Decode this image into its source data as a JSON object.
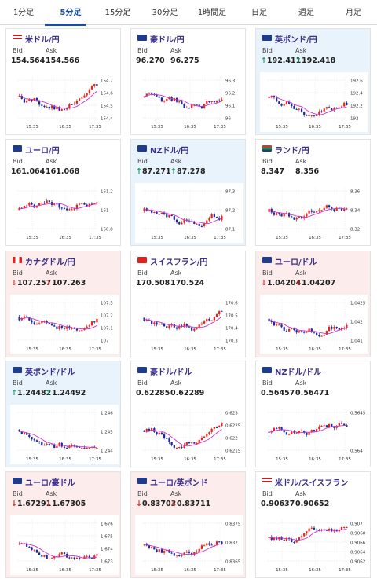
{
  "tabs": [
    "1分足",
    "5分足",
    "15分足",
    "30分足",
    "1時間足",
    "日足",
    "週足",
    "月足"
  ],
  "active_tab": 1,
  "bid_label": "Bid",
  "ask_label": "Ask",
  "arrow_up": "↑",
  "arrow_down": "↓",
  "x_ticks": [
    "15:35",
    "16:35",
    "17:35"
  ],
  "colors": {
    "accent": "#1a4fa0",
    "up_candle": "#e8231c",
    "down_candle": "#1a2a99",
    "ma_line": "#cc33cc",
    "up_arrow": "#1aa06a",
    "down_arrow": "#d43030",
    "up_bg": "#e9f3fc",
    "down_bg": "#fcecec"
  },
  "cards": [
    {
      "title": "米ドル/円",
      "bid": "154.564",
      "ask": "154.566",
      "trend": "none",
      "flag": "us",
      "y_ticks": [
        "154.7",
        "154.6",
        "154.5",
        "154.4"
      ]
    },
    {
      "title": "豪ドル/円",
      "bid": "96.270",
      "ask": "96.275",
      "trend": "none",
      "flag": "au",
      "y_ticks": [
        "96.3",
        "96.2",
        "96.1",
        "96"
      ]
    },
    {
      "title": "英ポンド/円",
      "bid": "192.411",
      "ask": "192.418",
      "trend": "up",
      "flag": "gb",
      "y_ticks": [
        "192.6",
        "192.4",
        "192.2",
        "192"
      ]
    },
    {
      "title": "ユーロ/円",
      "bid": "161.064",
      "ask": "161.068",
      "trend": "none",
      "flag": "eu",
      "y_ticks": [
        "161.2",
        "161",
        "160.8"
      ]
    },
    {
      "title": "NZドル/円",
      "bid": "87.271",
      "ask": "87.278",
      "trend": "up",
      "flag": "nz",
      "y_ticks": [
        "87.3",
        "87.2",
        "87.1"
      ]
    },
    {
      "title": "ランド/円",
      "bid": "8.347",
      "ask": "8.356",
      "trend": "none",
      "flag": "za",
      "y_ticks": [
        "8.36",
        "8.34",
        "8.32"
      ]
    },
    {
      "title": "カナダドル/円",
      "bid": "107.257",
      "ask": "107.263",
      "trend": "down",
      "flag": "ca",
      "y_ticks": [
        "107.3",
        "107.2",
        "107.1",
        "107"
      ]
    },
    {
      "title": "スイスフラン/円",
      "bid": "170.508",
      "ask": "170.524",
      "trend": "none",
      "flag": "ch",
      "y_ticks": [
        "170.6",
        "170.5",
        "170.4",
        "170.3"
      ]
    },
    {
      "title": "ユーロ/ドル",
      "bid": "1.04204",
      "ask": "1.04207",
      "trend": "down",
      "flag": "eu",
      "y_ticks": [
        "1.0425",
        "1.042",
        "1.041"
      ]
    },
    {
      "title": "英ポンド/ドル",
      "bid": "1.24482",
      "ask": "1.24492",
      "trend": "up",
      "flag": "gb",
      "y_ticks": [
        "1.246",
        "1.245",
        "1.244"
      ]
    },
    {
      "title": "豪ドル/ドル",
      "bid": "0.62285",
      "ask": "0.62289",
      "trend": "none",
      "flag": "au",
      "y_ticks": [
        "0.623",
        "0.6225",
        "0.622",
        "0.6215"
      ]
    },
    {
      "title": "NZドル/ドル",
      "bid": "0.56457",
      "ask": "0.56471",
      "trend": "none",
      "flag": "nz",
      "y_ticks": [
        "0.5645",
        "0.564"
      ]
    },
    {
      "title": "ユーロ/豪ドル",
      "bid": "1.67291",
      "ask": "1.67305",
      "trend": "down",
      "flag": "eu",
      "y_ticks": [
        "1.676",
        "1.675",
        "1.674",
        "1.673"
      ]
    },
    {
      "title": "ユーロ/英ポンド",
      "bid": "0.83703",
      "ask": "0.83711",
      "trend": "down",
      "flag": "eu",
      "y_ticks": [
        "0.8375",
        "0.837",
        "0.8365"
      ]
    },
    {
      "title": "米ドル/スイスフラン",
      "bid": "0.90637",
      "ask": "0.90652",
      "trend": "none",
      "flag": "us",
      "y_ticks": [
        "0.907",
        "0.9068",
        "0.9066",
        "0.9064",
        "0.9062"
      ]
    }
  ]
}
